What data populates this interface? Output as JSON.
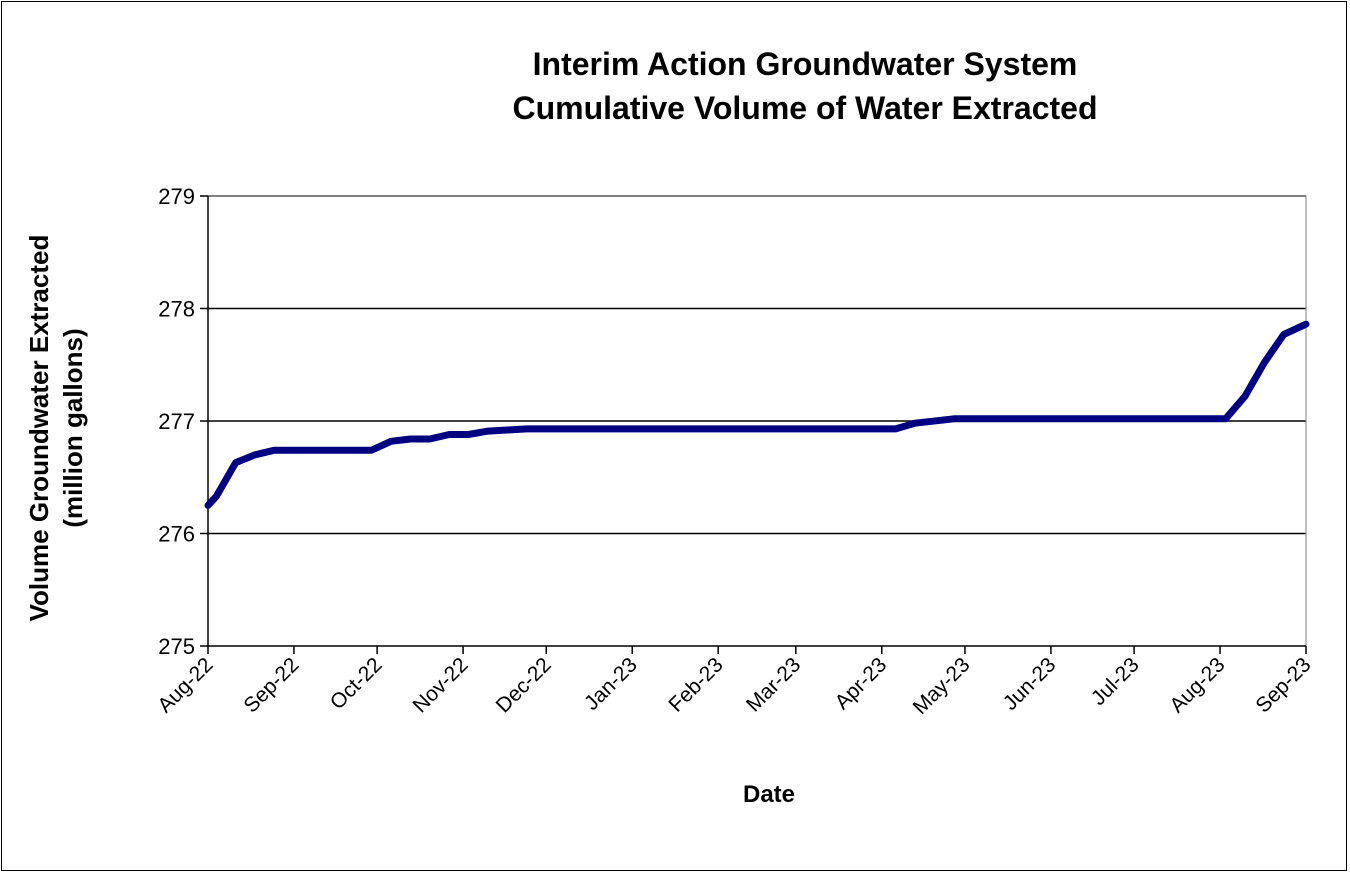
{
  "chart_data": {
    "type": "line",
    "title": [
      "Interim Action Groundwater System",
      "Cumulative Volume of Water Extracted"
    ],
    "xlabel": "Date",
    "ylabel": [
      "Volume Groundwater Extracted",
      "(million gallons)"
    ],
    "ylim": [
      275,
      279
    ],
    "yticks": [
      275,
      276,
      277,
      278,
      279
    ],
    "xlim": [
      "2022-08-01",
      "2023-09-01"
    ],
    "xticks": [
      {
        "date": "2022-08-01",
        "label": "Aug-22"
      },
      {
        "date": "2022-09-01",
        "label": "Sep-22"
      },
      {
        "date": "2022-10-01",
        "label": "Oct-22"
      },
      {
        "date": "2022-11-01",
        "label": "Nov-22"
      },
      {
        "date": "2022-12-01",
        "label": "Dec-22"
      },
      {
        "date": "2023-01-01",
        "label": "Jan-23"
      },
      {
        "date": "2023-02-01",
        "label": "Feb-23"
      },
      {
        "date": "2023-03-01",
        "label": "Mar-23"
      },
      {
        "date": "2023-04-01",
        "label": "Apr-23"
      },
      {
        "date": "2023-05-01",
        "label": "May-23"
      },
      {
        "date": "2023-06-01",
        "label": "Jun-23"
      },
      {
        "date": "2023-07-01",
        "label": "Jul-23"
      },
      {
        "date": "2023-08-01",
        "label": "Aug-23"
      },
      {
        "date": "2023-09-01",
        "label": "Sep-23"
      }
    ],
    "grid": "horizontal",
    "line_color": "#000080",
    "series": [
      {
        "x": [
          "2022-08-01",
          "2022-08-04",
          "2022-08-11",
          "2022-08-18",
          "2022-08-25",
          "2022-09-08",
          "2022-09-22",
          "2022-09-29",
          "2022-10-06",
          "2022-10-13",
          "2022-10-20",
          "2022-10-27",
          "2022-11-03",
          "2022-11-10",
          "2022-11-24",
          "2022-12-08",
          "2023-01-05",
          "2023-02-02",
          "2023-03-02",
          "2023-04-06",
          "2023-04-13",
          "2023-04-27",
          "2023-05-04",
          "2023-06-01",
          "2023-07-06",
          "2023-08-03",
          "2023-08-10",
          "2023-08-17",
          "2023-08-24",
          "2023-09-01"
        ],
        "y": [
          276.25,
          276.33,
          276.63,
          276.7,
          276.74,
          276.74,
          276.74,
          276.74,
          276.82,
          276.84,
          276.84,
          276.88,
          276.88,
          276.91,
          276.93,
          276.93,
          276.93,
          276.93,
          276.93,
          276.93,
          276.98,
          277.02,
          277.02,
          277.02,
          277.02,
          277.02,
          277.22,
          277.52,
          277.77,
          277.86
        ]
      }
    ]
  }
}
